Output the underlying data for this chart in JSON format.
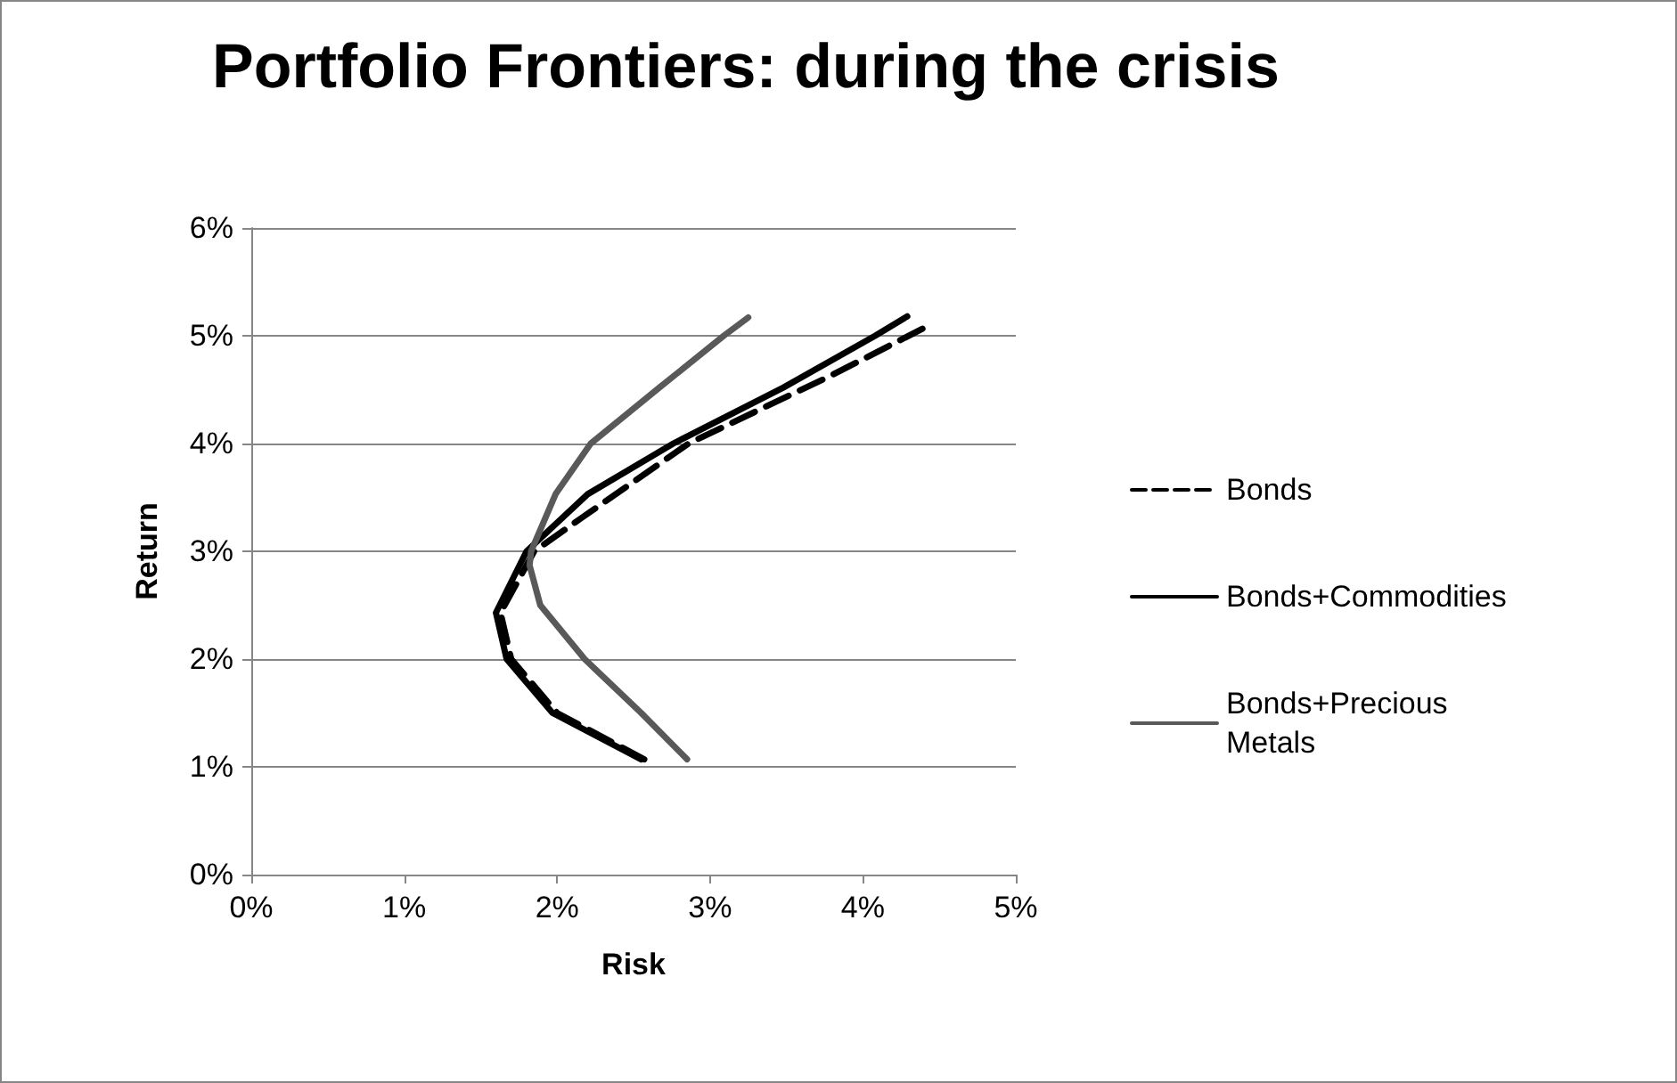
{
  "chart_data": {
    "type": "line",
    "title": "Portfolio Frontiers: during the crisis",
    "xlabel": "Risk",
    "ylabel": "Return",
    "xlim": [
      0,
      5
    ],
    "xticks": [
      {
        "value": 0,
        "label": "0%"
      },
      {
        "value": 1,
        "label": "1%"
      },
      {
        "value": 2,
        "label": "2%"
      },
      {
        "value": 3,
        "label": "3%"
      },
      {
        "value": 4,
        "label": "4%"
      },
      {
        "value": 5,
        "label": "5%"
      }
    ],
    "ylim": [
      0,
      6
    ],
    "yticks": [
      {
        "value": 0,
        "label": "0%"
      },
      {
        "value": 1,
        "label": "1%"
      },
      {
        "value": 2,
        "label": "2%"
      },
      {
        "value": 3,
        "label": "3%"
      },
      {
        "value": 4,
        "label": "4%"
      },
      {
        "value": 5,
        "label": "5%"
      },
      {
        "value": 6,
        "label": "6%"
      }
    ],
    "grid": "y",
    "legend": "right",
    "marker": "none",
    "series": [
      {
        "name": "Bonds",
        "color": "#000000",
        "line_style": "dashed",
        "x": [
          2.57,
          2.0,
          1.7,
          1.63,
          1.85,
          2.16,
          2.86,
          3.79,
          4.41
        ],
        "values": [
          1.07,
          1.5,
          2.0,
          2.43,
          3.0,
          3.31,
          4.0,
          4.63,
          5.08
        ]
      },
      {
        "name": "Bonds+Commodities",
        "color": "#000000",
        "line_style": "solid",
        "x": [
          2.55,
          1.97,
          1.67,
          1.6,
          1.8,
          2.2,
          2.76,
          3.48,
          4.08,
          4.29
        ],
        "values": [
          1.07,
          1.5,
          2.0,
          2.43,
          3.0,
          3.53,
          4.0,
          4.52,
          5.0,
          5.18
        ]
      },
      {
        "name": "Bonds+Precious Metals",
        "color": "#595959",
        "line_style": "solid",
        "x": [
          2.85,
          2.55,
          2.18,
          1.89,
          1.82,
          1.83,
          1.99,
          2.22,
          2.67,
          3.09,
          3.25
        ],
        "values": [
          1.07,
          1.5,
          2.0,
          2.5,
          2.87,
          3.0,
          3.53,
          4.0,
          4.52,
          5.0,
          5.17
        ]
      }
    ]
  }
}
